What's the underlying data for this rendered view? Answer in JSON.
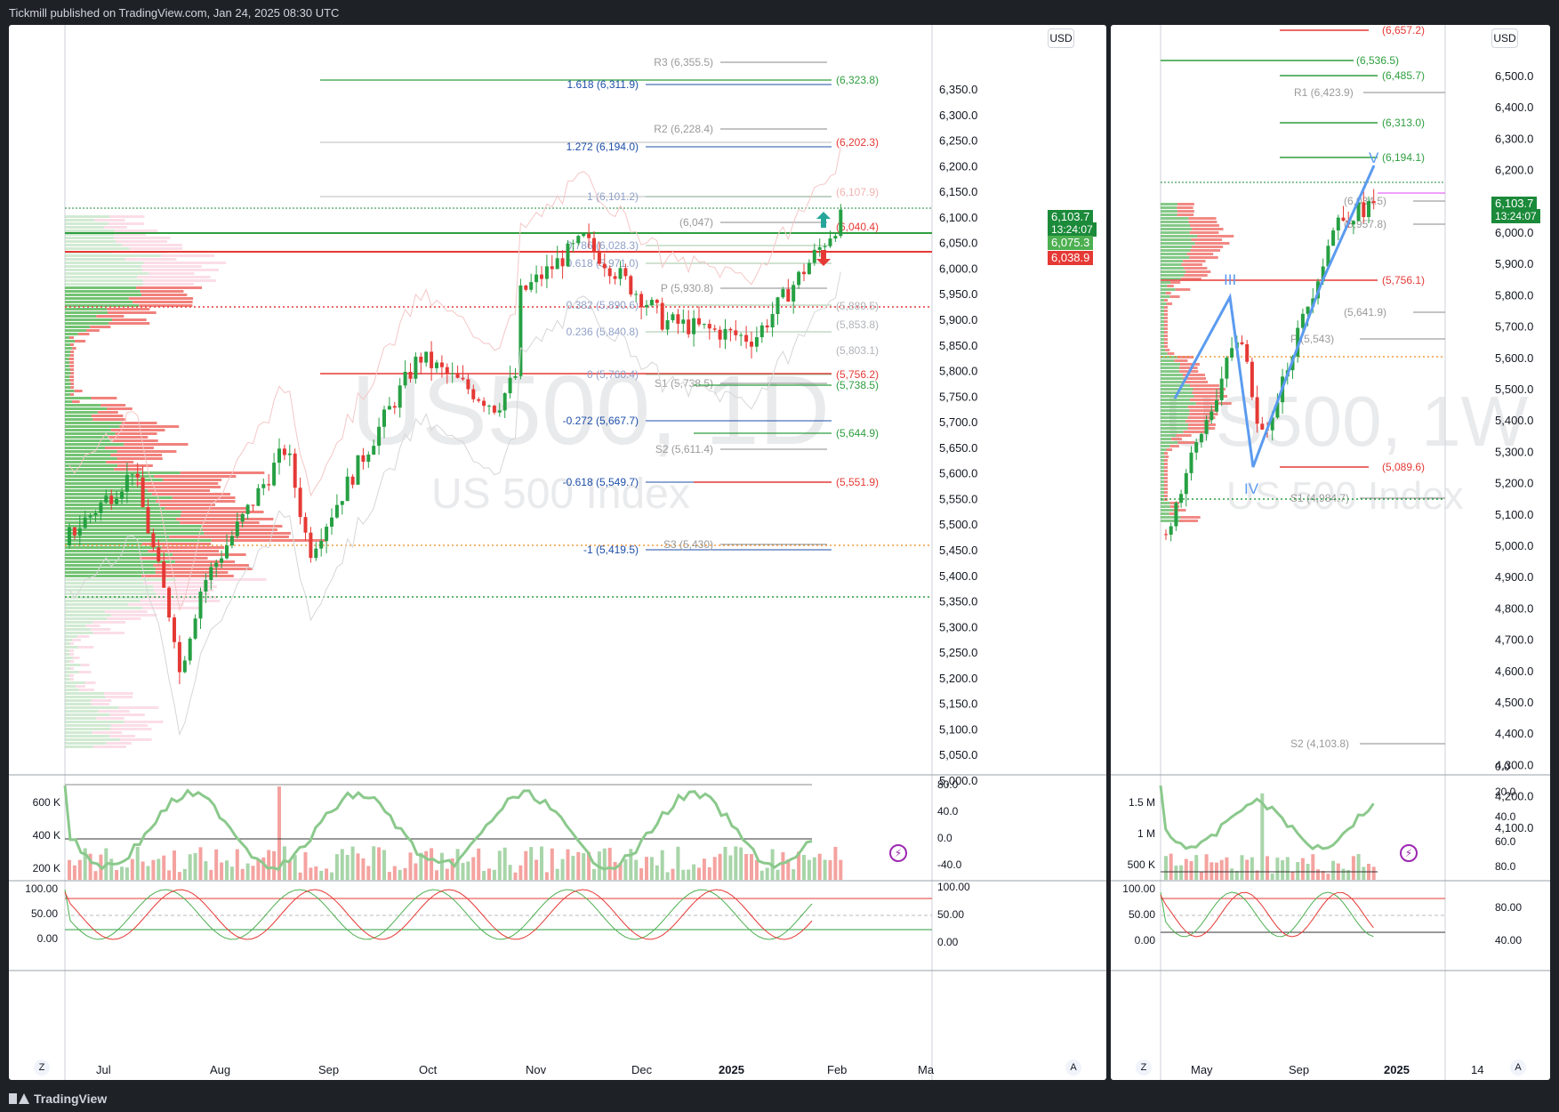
{
  "header": {
    "publisher": "Tickmill published on TradingView.com, Jan 24, 2025 08:30 UTC"
  },
  "footer": {
    "brand": "TradingView"
  },
  "colors": {
    "up": "#26a043",
    "down": "#e53935",
    "fib": "#1e4fa8",
    "pivot_line": "#9a9a9a",
    "profile_up": "#4caf50",
    "profile_down": "#f44336"
  },
  "daily": {
    "currency": "USD",
    "watermark_symbol": "US500, 1D",
    "watermark_name": "US 500 Index",
    "price_ticks": [
      "6,350.0",
      "6,300.0",
      "6,250.0",
      "6,200.0",
      "6,150.0",
      "6,100.0",
      "6,050.0",
      "6,000.0",
      "5,950.0",
      "5,900.0",
      "5,850.0",
      "5,800.0",
      "5,750.0",
      "5,700.0",
      "5,650.0",
      "5,600.0",
      "5,550.0",
      "5,500.0",
      "5,450.0",
      "5,400.0",
      "5,350.0",
      "5,300.0",
      "5,250.0",
      "5,200.0",
      "5,150.0",
      "5,100.0",
      "5,050.0",
      "5,000.0"
    ],
    "time_labels": [
      "Jul",
      "Aug",
      "Sep",
      "Oct",
      "Nov",
      "Dec",
      "2025",
      "Feb",
      "Ma"
    ],
    "last_price": "6,103.7",
    "countdown": "13:24:07",
    "level_green": "6,075.3",
    "level_red": "6,038.9",
    "fib_labels": [
      "1.618 (6,311.9)",
      "1.272 (6,194.0)",
      "1 (6,101.2)",
      "0.786 (6,028.3)",
      "0.618 (5,971.0)",
      "0.382 (5,890.6)",
      "0.236 (5,840.8)",
      "0 (5,760.4)",
      "-0.272 (5,667.7)",
      "-0.618 (5,549.7)",
      "-1 (5,419.5)"
    ],
    "pivot_labels": [
      "R3 (6,355.5)",
      "R2 (6,228.4)",
      "(6,047)",
      "P (5,930.8)",
      "S1 (5,738.5)",
      "S2 (5,611.4)",
      "S3 (5,430)"
    ],
    "green_labels": [
      "(6,323.8)",
      "(5,738.5)",
      "(5,644.9)"
    ],
    "red_labels": [
      "(6,202.3)",
      "(6,107.9)",
      "(6,040.4)",
      "(5,756.2)",
      "(5,551.9)"
    ],
    "grey_labels": [
      "(5,889.5)",
      "(5,853.8)",
      "(5,803.1)"
    ],
    "vol_ticks": [
      "600 K",
      "400 K",
      "200 K"
    ],
    "rsi_ticks": [
      "80.0",
      "40.0",
      "0.0",
      "-40.0"
    ],
    "stoch_ticks_left": [
      "100.00",
      "50.00",
      "0.00"
    ],
    "stoch_ticks_right": [
      "100.00",
      "50.00",
      "0.00"
    ],
    "zoom_btn": "Z",
    "auto_btn": "A"
  },
  "weekly": {
    "currency": "USD",
    "watermark_symbol": "US500, 1W",
    "watermark_name": "US 500 Index",
    "price_ticks": [
      "6,500.0",
      "6,400.0",
      "6,300.0",
      "6,200.0",
      "6,100.0",
      "6,000.0",
      "5,900.0",
      "5,800.0",
      "5,700.0",
      "5,600.0",
      "5,500.0",
      "5,400.0",
      "5,300.0",
      "5,200.0",
      "5,100.0",
      "5,000.0",
      "4,900.0",
      "4,800.0",
      "4,700.0",
      "4,600.0",
      "4,500.0",
      "4,400.0",
      "4,300.0",
      "4,200.0",
      "4,100.0"
    ],
    "time_labels": [
      "May",
      "Sep",
      "2025",
      "14"
    ],
    "last_price": "6,103.7",
    "countdown": "13:24:07",
    "level_labels_red": [
      "(6,657.2)",
      "(5,756.1)",
      "(5,089.6)"
    ],
    "level_labels_green": [
      "(6,536.5)",
      "(6,485.7)",
      "(6,313.0)",
      "(6,194.1)"
    ],
    "level_labels_grey": [
      "R1 (6,423.9)",
      "(6,034.5)",
      "(5,957.8)",
      "(5,641.9)",
      "P (5,543)",
      "S1 (4,984.7)",
      "S2 (4,103.8)"
    ],
    "wave_labels": [
      "III",
      "IV",
      "V"
    ],
    "vol_ticks": [
      "1.5 M",
      "1 M",
      "500 K"
    ],
    "rsi_ticks": [
      "80.0",
      "60.0",
      "40.0",
      "20.0",
      "0.0"
    ],
    "stoch_ticks_left": [
      "100.00",
      "50.00",
      "0.00"
    ],
    "stoch_ticks_right": [
      "80.00",
      "40.00"
    ],
    "zoom_btn": "Z",
    "auto_btn": "A"
  }
}
